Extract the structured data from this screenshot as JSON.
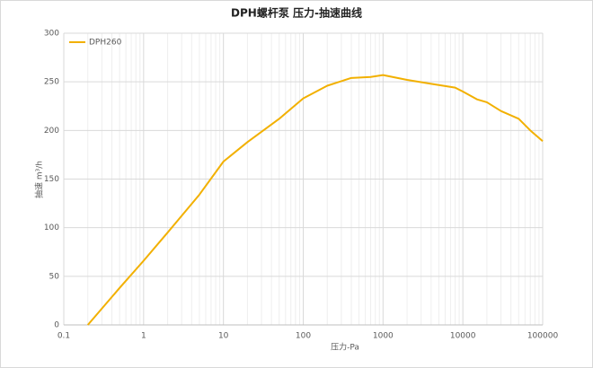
{
  "chart_data": {
    "type": "line",
    "title": "DPH螺杆泵 压力-抽速曲线",
    "x_label": "压力-Pa",
    "y_label": "抽速 m³/h",
    "x": [
      0.2,
      0.5,
      1,
      2,
      5,
      10,
      20,
      50,
      100,
      200,
      400,
      700,
      1000,
      2000,
      4000,
      8000,
      10000,
      15000,
      20000,
      30000,
      50000,
      70000,
      100000
    ],
    "series": [
      {
        "name": "DPH260",
        "color": "#f2b000",
        "values": [
          0,
          38,
          66,
          95,
          134,
          168,
          188,
          212,
          233,
          246,
          254,
          255,
          257,
          252,
          248,
          244,
          240,
          232,
          229,
          220,
          212,
          200,
          189
        ]
      }
    ],
    "xscale": "log",
    "xlim": [
      0.1,
      100000
    ],
    "xticks": [
      0.1,
      1,
      10,
      100,
      1000,
      10000,
      100000
    ],
    "ylim": [
      0,
      300
    ],
    "yticks": [
      0,
      50,
      100,
      150,
      200,
      250,
      300
    ],
    "grid": true,
    "legend": "top-left"
  }
}
